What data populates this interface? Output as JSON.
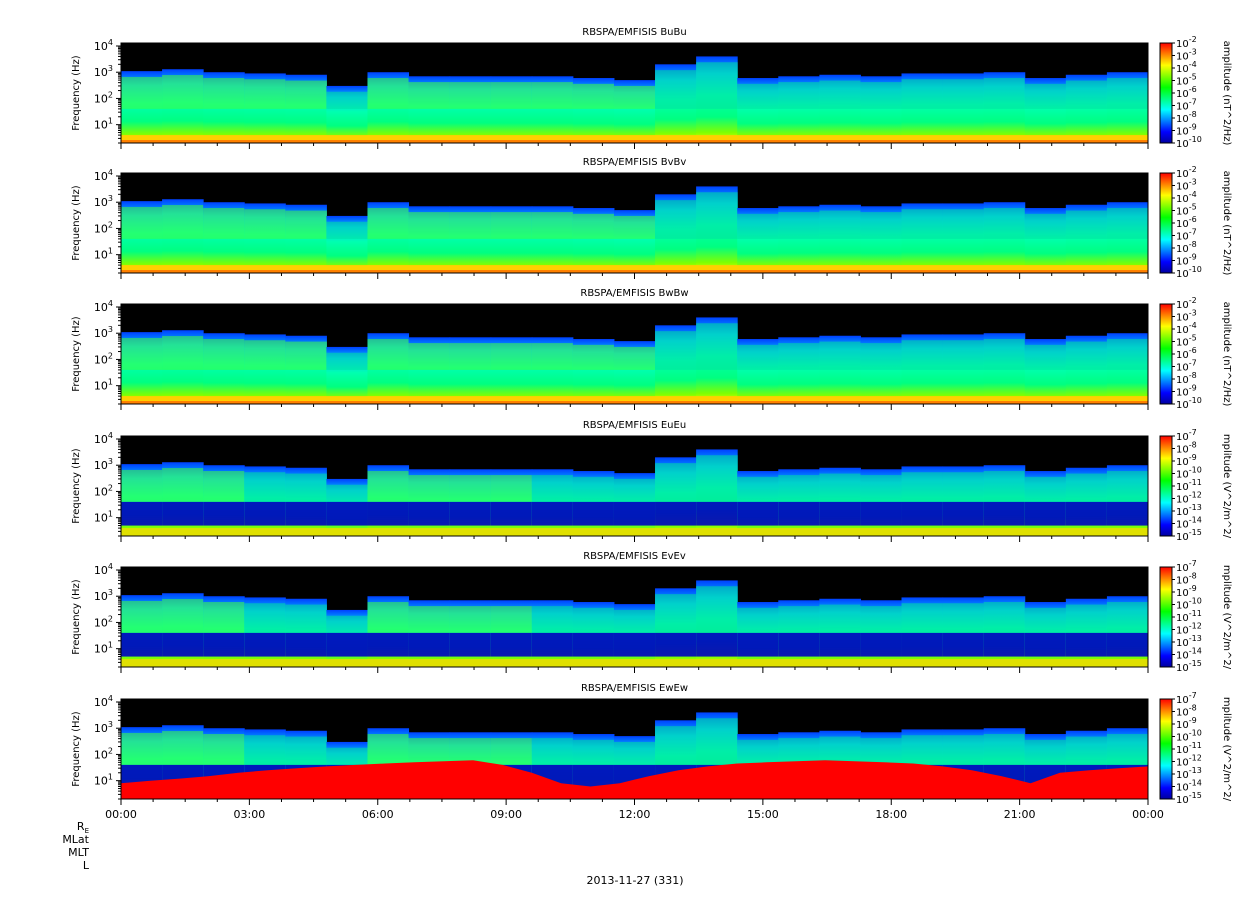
{
  "chart_data": [
    {
      "type": "heatmap",
      "title": "RBSPA/EMFISIS  BuBu",
      "ylabel": "Frequency (Hz)",
      "yscale": "log",
      "ylim": [
        2,
        13000
      ],
      "y_ticks": [
        "10^4",
        "10^3",
        "10^2",
        "10^1"
      ],
      "colorbar": {
        "label": "amplitude (nT^2/Hz)",
        "scale": "log",
        "ticks": [
          "10^-2",
          "10^-3",
          "10^-4",
          "10^-5",
          "10^-6",
          "10^-7",
          "10^-8",
          "10^-9",
          "10^-10"
        ],
        "range": [
          -10,
          -2
        ]
      },
      "signal": {
        "upper_edge_hz": [
          1100,
          1300,
          1000,
          900,
          800,
          300,
          1000,
          700,
          700,
          700,
          700,
          600,
          500,
          2000,
          4000,
          600,
          700,
          800,
          700,
          900,
          900,
          1000,
          600,
          800,
          1000
        ],
        "fill_level": [
          0.5,
          0.5,
          0.5,
          0.5,
          0.45,
          0.3,
          0.5,
          0.5,
          0.5,
          0.5,
          0.5,
          0.5,
          0.45,
          0.3,
          0.4,
          0.3,
          0.35,
          0.4,
          0.35,
          0.35,
          0.35,
          0.3,
          0.3,
          0.3,
          0.35
        ]
      }
    },
    {
      "type": "heatmap",
      "title": "RBSPA/EMFISIS  BvBv",
      "ylabel": "Frequency (Hz)",
      "yscale": "log",
      "ylim": [
        2,
        13000
      ],
      "y_ticks": [
        "10^4",
        "10^3",
        "10^2",
        "10^1"
      ],
      "colorbar": {
        "label": "amplitude (nT^2/Hz)",
        "scale": "log",
        "ticks": [
          "10^-2",
          "10^-3",
          "10^-4",
          "10^-5",
          "10^-6",
          "10^-7",
          "10^-8",
          "10^-9",
          "10^-10"
        ],
        "range": [
          -10,
          -2
        ]
      },
      "signal": {
        "upper_edge_hz": [
          1100,
          1300,
          1000,
          900,
          800,
          300,
          1000,
          700,
          700,
          700,
          700,
          600,
          500,
          2000,
          4000,
          600,
          700,
          800,
          700,
          900,
          900,
          1000,
          600,
          800,
          1000
        ],
        "fill_level": [
          0.5,
          0.5,
          0.5,
          0.5,
          0.45,
          0.3,
          0.5,
          0.5,
          0.5,
          0.5,
          0.5,
          0.5,
          0.45,
          0.3,
          0.4,
          0.3,
          0.35,
          0.4,
          0.35,
          0.35,
          0.35,
          0.3,
          0.3,
          0.3,
          0.35
        ]
      }
    },
    {
      "type": "heatmap",
      "title": "RBSPA/EMFISIS  BwBw",
      "ylabel": "Frequency (Hz)",
      "yscale": "log",
      "ylim": [
        2,
        13000
      ],
      "y_ticks": [
        "10^4",
        "10^3",
        "10^2",
        "10^1"
      ],
      "colorbar": {
        "label": "amplitude (nT^2/Hz)",
        "scale": "log",
        "ticks": [
          "10^-2",
          "10^-3",
          "10^-4",
          "10^-5",
          "10^-6",
          "10^-7",
          "10^-8",
          "10^-9",
          "10^-10"
        ],
        "range": [
          -10,
          -2
        ]
      },
      "signal": {
        "upper_edge_hz": [
          1100,
          1300,
          1000,
          900,
          800,
          300,
          1000,
          700,
          700,
          700,
          700,
          600,
          500,
          2000,
          4000,
          600,
          700,
          800,
          700,
          900,
          900,
          1000,
          600,
          800,
          1000
        ],
        "fill_level": [
          0.5,
          0.5,
          0.5,
          0.5,
          0.45,
          0.3,
          0.5,
          0.5,
          0.5,
          0.5,
          0.5,
          0.5,
          0.45,
          0.3,
          0.4,
          0.3,
          0.35,
          0.4,
          0.35,
          0.35,
          0.35,
          0.3,
          0.3,
          0.3,
          0.35
        ]
      }
    },
    {
      "type": "heatmap",
      "title": "RBSPA/EMFISIS  EuEu",
      "ylabel": "Frequency (Hz)",
      "yscale": "log",
      "ylim": [
        2,
        13000
      ],
      "y_ticks": [
        "10^4",
        "10^3",
        "10^2",
        "10^1"
      ],
      "colorbar": {
        "label": "mplitude (V^2/m^2/",
        "scale": "log",
        "ticks": [
          "10^-7",
          "10^-8",
          "10^-9",
          "10^-10",
          "10^-11",
          "10^-12",
          "10^-13",
          "10^-14",
          "10^-15"
        ],
        "range": [
          -15,
          -7
        ]
      },
      "signal": {
        "upper_edge_hz": [
          1100,
          1300,
          1000,
          900,
          800,
          300,
          1000,
          700,
          700,
          700,
          700,
          600,
          500,
          2000,
          4000,
          600,
          700,
          800,
          700,
          900,
          900,
          1000,
          600,
          800,
          1000
        ],
        "fill_level": [
          0.45,
          0.45,
          0.45,
          0.4,
          0.35,
          0.2,
          0.45,
          0.45,
          0.45,
          0.45,
          0.4,
          0.4,
          0.35,
          0.3,
          0.35,
          0.2,
          0.25,
          0.3,
          0.25,
          0.25,
          0.25,
          0.2,
          0.2,
          0.2,
          0.25
        ]
      }
    },
    {
      "type": "heatmap",
      "title": "RBSPA/EMFISIS  EvEv",
      "ylabel": "Frequency (Hz)",
      "yscale": "log",
      "ylim": [
        2,
        13000
      ],
      "y_ticks": [
        "10^4",
        "10^3",
        "10^2",
        "10^1"
      ],
      "colorbar": {
        "label": "mplitude (V^2/m^2/",
        "scale": "log",
        "ticks": [
          "10^-7",
          "10^-8",
          "10^-9",
          "10^-10",
          "10^-11",
          "10^-12",
          "10^-13",
          "10^-14",
          "10^-15"
        ],
        "range": [
          -15,
          -7
        ]
      },
      "signal": {
        "upper_edge_hz": [
          1100,
          1300,
          1000,
          900,
          800,
          300,
          1000,
          700,
          700,
          700,
          700,
          600,
          500,
          2000,
          4000,
          600,
          700,
          800,
          700,
          900,
          900,
          1000,
          600,
          800,
          1000
        ],
        "fill_level": [
          0.45,
          0.45,
          0.45,
          0.4,
          0.35,
          0.2,
          0.45,
          0.45,
          0.45,
          0.45,
          0.4,
          0.4,
          0.35,
          0.3,
          0.35,
          0.2,
          0.25,
          0.3,
          0.25,
          0.25,
          0.25,
          0.2,
          0.2,
          0.2,
          0.25
        ]
      }
    },
    {
      "type": "heatmap",
      "title": "RBSPA/EMFISIS  EwEw",
      "ylabel": "Frequency (Hz)",
      "yscale": "log",
      "ylim": [
        2,
        13000
      ],
      "y_ticks": [
        "10^4",
        "10^3",
        "10^2",
        "10^1"
      ],
      "colorbar": {
        "label": "mplitude (V^2/m^2/",
        "scale": "log",
        "ticks": [
          "10^-7",
          "10^-8",
          "10^-9",
          "10^-10",
          "10^-11",
          "10^-12",
          "10^-13",
          "10^-14",
          "10^-15"
        ],
        "range": [
          -15,
          -7
        ]
      },
      "signal": {
        "upper_edge_hz": [
          1100,
          1300,
          1000,
          900,
          800,
          300,
          1000,
          700,
          700,
          700,
          700,
          600,
          500,
          2000,
          4000,
          600,
          700,
          800,
          700,
          900,
          900,
          1000,
          600,
          800,
          1000
        ],
        "fill_level": [
          0.45,
          0.45,
          0.45,
          0.4,
          0.35,
          0.2,
          0.45,
          0.45,
          0.45,
          0.45,
          0.4,
          0.4,
          0.35,
          0.3,
          0.35,
          0.2,
          0.25,
          0.3,
          0.25,
          0.25,
          0.25,
          0.2,
          0.2,
          0.2,
          0.25
        ],
        "low_freq_red_edge_hz": [
          8,
          10,
          12,
          15,
          20,
          25,
          30,
          35,
          40,
          45,
          50,
          55,
          60,
          40,
          20,
          8,
          6,
          8,
          15,
          25,
          35,
          45,
          50,
          55,
          60,
          55,
          50,
          45,
          35,
          25,
          15,
          8,
          20,
          25,
          30,
          35
        ]
      }
    }
  ],
  "x_axis": {
    "ticks": [
      "00:00",
      "03:00",
      "06:00",
      "09:00",
      "12:00",
      "15:00",
      "18:00",
      "21:00",
      "00:00"
    ],
    "xlim_hours": [
      0,
      24
    ]
  },
  "footer": {
    "row_labels": [
      "RE",
      "MLat",
      "MLT",
      "L"
    ],
    "date": "2013-11-27 (331)"
  },
  "colors": {
    "background_no_signal": "#000000",
    "colormap": [
      "#0000a0",
      "#0000ff",
      "#0080ff",
      "#00ffff",
      "#00ff80",
      "#00ff00",
      "#80ff00",
      "#ffff00",
      "#ff8000",
      "#ff0000"
    ]
  }
}
